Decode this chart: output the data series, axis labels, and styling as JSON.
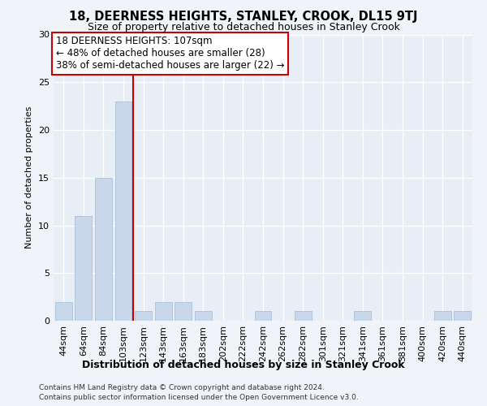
{
  "title": "18, DEERNESS HEIGHTS, STANLEY, CROOK, DL15 9TJ",
  "subtitle": "Size of property relative to detached houses in Stanley Crook",
  "xlabel": "Distribution of detached houses by size in Stanley Crook",
  "ylabel": "Number of detached properties",
  "footer_line1": "Contains HM Land Registry data © Crown copyright and database right 2024.",
  "footer_line2": "Contains public sector information licensed under the Open Government Licence v3.0.",
  "annotation_line1": "18 DEERNESS HEIGHTS: 107sqm",
  "annotation_line2": "← 48% of detached houses are smaller (28)",
  "annotation_line3": "38% of semi-detached houses are larger (22) →",
  "bar_color": "#c8d8ea",
  "bar_edge_color": "#aac0d8",
  "vline_color": "#cc0000",
  "vline_x_index": 3,
  "categories": [
    "44sqm",
    "64sqm",
    "84sqm",
    "103sqm",
    "123sqm",
    "143sqm",
    "163sqm",
    "183sqm",
    "202sqm",
    "222sqm",
    "242sqm",
    "262sqm",
    "282sqm",
    "301sqm",
    "321sqm",
    "341sqm",
    "361sqm",
    "381sqm",
    "400sqm",
    "420sqm",
    "440sqm"
  ],
  "values": [
    2,
    11,
    15,
    23,
    1,
    2,
    2,
    1,
    0,
    0,
    1,
    0,
    1,
    0,
    0,
    1,
    0,
    0,
    0,
    1,
    1
  ],
  "ylim": [
    0,
    30
  ],
  "yticks": [
    0,
    5,
    10,
    15,
    20,
    25,
    30
  ],
  "bg_color": "#f0f4f8",
  "plot_bg_color": "#e8eef5",
  "grid_color": "#ffffff",
  "annotation_box_color": "#ffffff",
  "annotation_box_edge": "#cc0000",
  "title_fontsize": 10.5,
  "subtitle_fontsize": 9,
  "xlabel_fontsize": 9,
  "ylabel_fontsize": 8,
  "tick_fontsize": 8,
  "annotation_fontsize": 8.5,
  "footer_fontsize": 6.5
}
